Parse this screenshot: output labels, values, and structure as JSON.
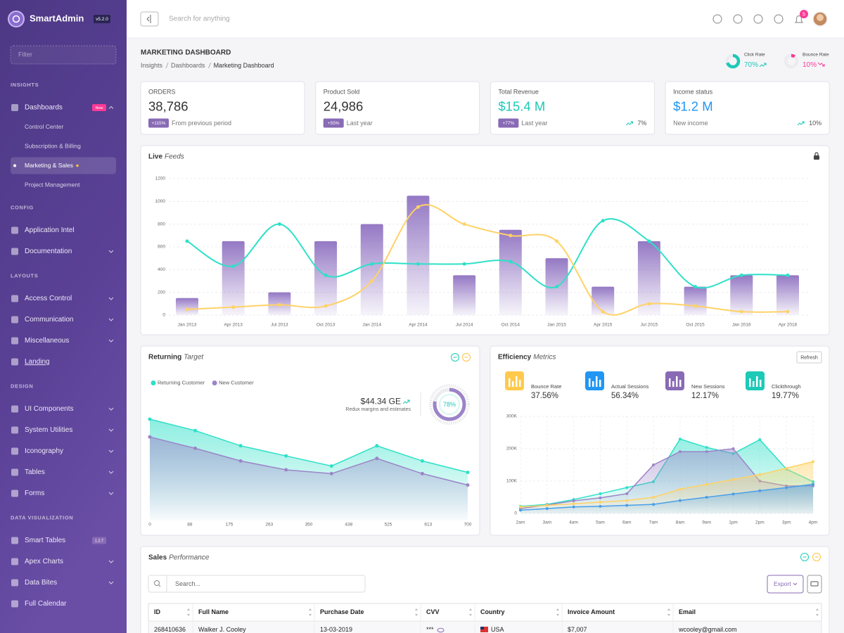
{
  "sidebar": {
    "brand": "SmartAdmin",
    "version": "v5.2.0",
    "filter": "Filter",
    "sections": [
      {
        "title": "INSIGHTS",
        "items": [
          {
            "label": "Dashboards",
            "badge": "New",
            "badge_color": "#fd3995",
            "children": [
              {
                "label": "Control Center"
              },
              {
                "label": "Subscription & Billing"
              },
              {
                "label": "Marketing & Sales",
                "active": true
              },
              {
                "label": "Project Management"
              }
            ]
          }
        ]
      },
      {
        "title": "CONFIG",
        "items": [
          {
            "label": "Application Intel"
          },
          {
            "label": "Documentation",
            "submenu": true
          }
        ]
      },
      {
        "title": "LAYOUTS",
        "items": [
          {
            "label": "Access Control",
            "submenu": true
          },
          {
            "label": "Communication",
            "submenu": true
          },
          {
            "label": "Miscellaneous",
            "submenu": true
          },
          {
            "label": "Landing",
            "link": true
          }
        ]
      },
      {
        "title": "DESIGN",
        "items": [
          {
            "label": "UI Components",
            "submenu": true
          },
          {
            "label": "System Utilities",
            "submenu": true
          },
          {
            "label": "Iconography",
            "submenu": true
          },
          {
            "label": "Tables",
            "submenu": true
          },
          {
            "label": "Forms",
            "submenu": true
          }
        ]
      },
      {
        "title": "DATA VISUALIZATION",
        "items": [
          {
            "label": "Smart Tables",
            "badge": "1.2.7",
            "badge_color": "#886ab5"
          },
          {
            "label": "Apex Charts",
            "submenu": true
          },
          {
            "label": "Data Bites",
            "submenu": true
          },
          {
            "label": "Full Calendar"
          }
        ]
      }
    ]
  },
  "topbar": {
    "search": "Search for anything",
    "notifications": "5"
  },
  "page": {
    "title": "MARKETING DASHBOARD",
    "breadcrumb": [
      "Insights",
      "Dashboards",
      "Marketing Dashboard"
    ],
    "kpis": [
      {
        "name": "Click Rate",
        "value": 70,
        "value_label": "70%",
        "color": "#1dc9b7"
      },
      {
        "name": "Bounce Rate",
        "value": 10,
        "value_label": "10%",
        "color": "#fd3995"
      }
    ]
  },
  "cards": [
    {
      "label": "ORDERS",
      "value": "38,786",
      "color": "#333333",
      "badge": "+115%",
      "note": "From previous period"
    },
    {
      "label": "Product Sold",
      "value": "24,986",
      "color": "#333333",
      "badge": "+55%",
      "note": "Last year"
    },
    {
      "label": "Total Revenue",
      "value": "$15.4 M",
      "color": "#1dc9b7",
      "badge": "+77%",
      "note": "Last year",
      "trend": "7%"
    },
    {
      "label": "Income status",
      "value": "$1.2 M",
      "color": "#2196f3",
      "note": "New income",
      "trend": "10%"
    }
  ],
  "chart_data": [
    {
      "type": "bar",
      "title": "Live",
      "title_em": "Feeds",
      "categories": [
        "Jan 2013",
        "Apr 2013",
        "Jul 2013",
        "Oct 2013",
        "Jan 2014",
        "Apr 2014",
        "Jul 2014",
        "Oct 2014",
        "Jan 2015",
        "Apr 2015",
        "Jul 2015",
        "Oct 2015",
        "Jan 2016",
        "Apr 2016"
      ],
      "series": [
        {
          "type": "bar",
          "color": "#9478c4",
          "values": [
            150,
            650,
            200,
            650,
            800,
            1050,
            350,
            750,
            500,
            250,
            650,
            250,
            350,
            350
          ]
        },
        {
          "type": "line",
          "color": "#2ee0c8",
          "values": [
            650,
            430,
            800,
            350,
            450,
            450,
            450,
            470,
            250,
            830,
            650,
            250,
            350,
            350
          ]
        },
        {
          "type": "line",
          "color": "#ffd266",
          "values": [
            50,
            70,
            90,
            80,
            300,
            950,
            800,
            700,
            650,
            30,
            100,
            80,
            30,
            30
          ]
        }
      ],
      "ylim": [
        0,
        1200
      ],
      "yticks": [
        0,
        200,
        400,
        600,
        800,
        1000,
        1200
      ],
      "grid": true
    },
    {
      "type": "area",
      "title": "Returning",
      "title_em": "Target",
      "x": [
        0,
        100,
        200,
        300,
        400,
        500,
        600,
        700
      ],
      "xlim": [
        0,
        700
      ],
      "xticks": [
        0,
        88,
        175,
        263,
        350,
        438,
        525,
        613,
        700
      ],
      "ylim": [
        0,
        100
      ],
      "series": [
        {
          "name": "Returning Customer",
          "color": "#2ee0c8",
          "values": [
            80,
            71,
            59,
            51,
            43,
            59,
            47,
            38
          ]
        },
        {
          "name": "New Customer",
          "color": "#9c84c8",
          "values": [
            66,
            57,
            47,
            40,
            37,
            49,
            37,
            28
          ]
        }
      ],
      "summary": {
        "value": "$44.34 GE",
        "note": "Redux margins and estimates"
      },
      "gauge": {
        "value": 78,
        "value_label": "78%",
        "color": "#9c84c8"
      }
    },
    {
      "type": "area",
      "title": "Efficiency",
      "title_em": "Metrics",
      "button": "Refresh",
      "stats": [
        {
          "label": "Bounce Rate",
          "value": "37.56%",
          "color": "#ffc94d"
        },
        {
          "label": "Actual Sessions",
          "value": "56.34%",
          "color": "#2196f3"
        },
        {
          "label": "New Sessions",
          "value": "12.17%",
          "color": "#886ab5"
        },
        {
          "label": "Clickthrough",
          "value": "19.77%",
          "color": "#1dc9b7"
        }
      ],
      "categories": [
        "2am",
        "3am",
        "4am",
        "5am",
        "6am",
        "7am",
        "8am",
        "9am",
        "1pm",
        "2pm",
        "3pm",
        "4pm"
      ],
      "series": [
        {
          "color": "#2ee0c8",
          "values": [
            22000,
            28000,
            43000,
            61000,
            80000,
            98000,
            230000,
            204000,
            185000,
            228000,
            137000,
            98000
          ]
        },
        {
          "color": "#9c84c8",
          "values": [
            15000,
            26000,
            39000,
            48000,
            61000,
            150000,
            191000,
            191000,
            200000,
            100000,
            85000,
            85000
          ]
        },
        {
          "color": "#ffd266",
          "values": [
            20000,
            25000,
            30000,
            35000,
            40000,
            50000,
            75000,
            90000,
            105000,
            120000,
            140000,
            160000
          ]
        },
        {
          "color": "#4a9fe8",
          "values": [
            10000,
            15000,
            20000,
            22000,
            25000,
            28000,
            40000,
            50000,
            60000,
            70000,
            80000,
            90000
          ]
        }
      ],
      "ylim": [
        0,
        300000
      ],
      "yticks": [
        0,
        {
          "value": 100000,
          "label": "100K"
        },
        {
          "value": 200000,
          "label": "200K"
        },
        {
          "value": 300000,
          "label": "300K"
        }
      ],
      "grid": true
    }
  ],
  "table": {
    "title": "Sales",
    "title_em": "Performance",
    "search": "Search...",
    "export": "Export",
    "columns": [
      "ID",
      "Full Name",
      "Purchase Date",
      "CVV",
      "Country",
      "Invoice Amount",
      "Email"
    ],
    "rows": [
      [
        "268410636",
        "Walker J. Cooley",
        "13-03-2019",
        "***",
        "USA",
        "$7,007",
        "wcooley@gmail.com"
      ]
    ]
  }
}
